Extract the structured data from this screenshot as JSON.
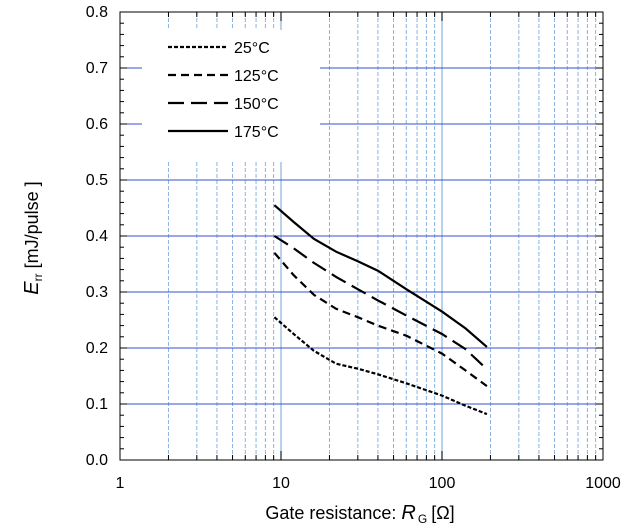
{
  "chart_data": {
    "type": "line",
    "xscale": "log",
    "xlim": [
      1,
      1000
    ],
    "ylim": [
      0,
      0.8
    ],
    "ylabel": {
      "symbol": "E",
      "subscript": "rr",
      "unit": "[mJ/pulse ]"
    },
    "xlabel": {
      "text": "Gate resistance: ",
      "symbol": "R",
      "subscript": "G",
      "unit": "[Ω]"
    },
    "x_ticks": [
      "1",
      "10",
      "100",
      "1000"
    ],
    "y_ticks": [
      "0.0",
      "0.1",
      "0.2",
      "0.3",
      "0.4",
      "0.5",
      "0.6",
      "0.7",
      "0.8"
    ],
    "grid": true,
    "legend_position": "top-left",
    "colors": {
      "major_grid": "#3a4fd6",
      "minor_grid": "#8ab4e0",
      "lines": "#000000"
    },
    "series": [
      {
        "name": "25°C",
        "dash": "dotted",
        "points": [
          [
            9.1,
            0.255
          ],
          [
            12,
            0.225
          ],
          [
            16,
            0.195
          ],
          [
            22,
            0.172
          ],
          [
            30,
            0.163
          ],
          [
            40,
            0.153
          ],
          [
            60,
            0.137
          ],
          [
            100,
            0.115
          ],
          [
            140,
            0.097
          ],
          [
            190,
            0.082
          ]
        ]
      },
      {
        "name": "125°C",
        "dash": "short-dash",
        "points": [
          [
            9.1,
            0.37
          ],
          [
            12,
            0.33
          ],
          [
            16,
            0.295
          ],
          [
            22,
            0.27
          ],
          [
            30,
            0.255
          ],
          [
            40,
            0.24
          ],
          [
            60,
            0.222
          ],
          [
            100,
            0.19
          ],
          [
            140,
            0.16
          ],
          [
            190,
            0.132
          ]
        ]
      },
      {
        "name": "150°C",
        "dash": "long-dash",
        "points": [
          [
            9.1,
            0.4
          ],
          [
            12,
            0.378
          ],
          [
            16,
            0.352
          ],
          [
            22,
            0.327
          ],
          [
            30,
            0.305
          ],
          [
            40,
            0.285
          ],
          [
            60,
            0.258
          ],
          [
            100,
            0.225
          ],
          [
            140,
            0.198
          ],
          [
            190,
            0.162
          ]
        ]
      },
      {
        "name": "175°C",
        "dash": "solid",
        "points": [
          [
            9.1,
            0.455
          ],
          [
            12,
            0.425
          ],
          [
            16,
            0.395
          ],
          [
            22,
            0.372
          ],
          [
            30,
            0.355
          ],
          [
            40,
            0.338
          ],
          [
            60,
            0.305
          ],
          [
            100,
            0.265
          ],
          [
            140,
            0.235
          ],
          [
            190,
            0.202
          ]
        ]
      }
    ]
  }
}
